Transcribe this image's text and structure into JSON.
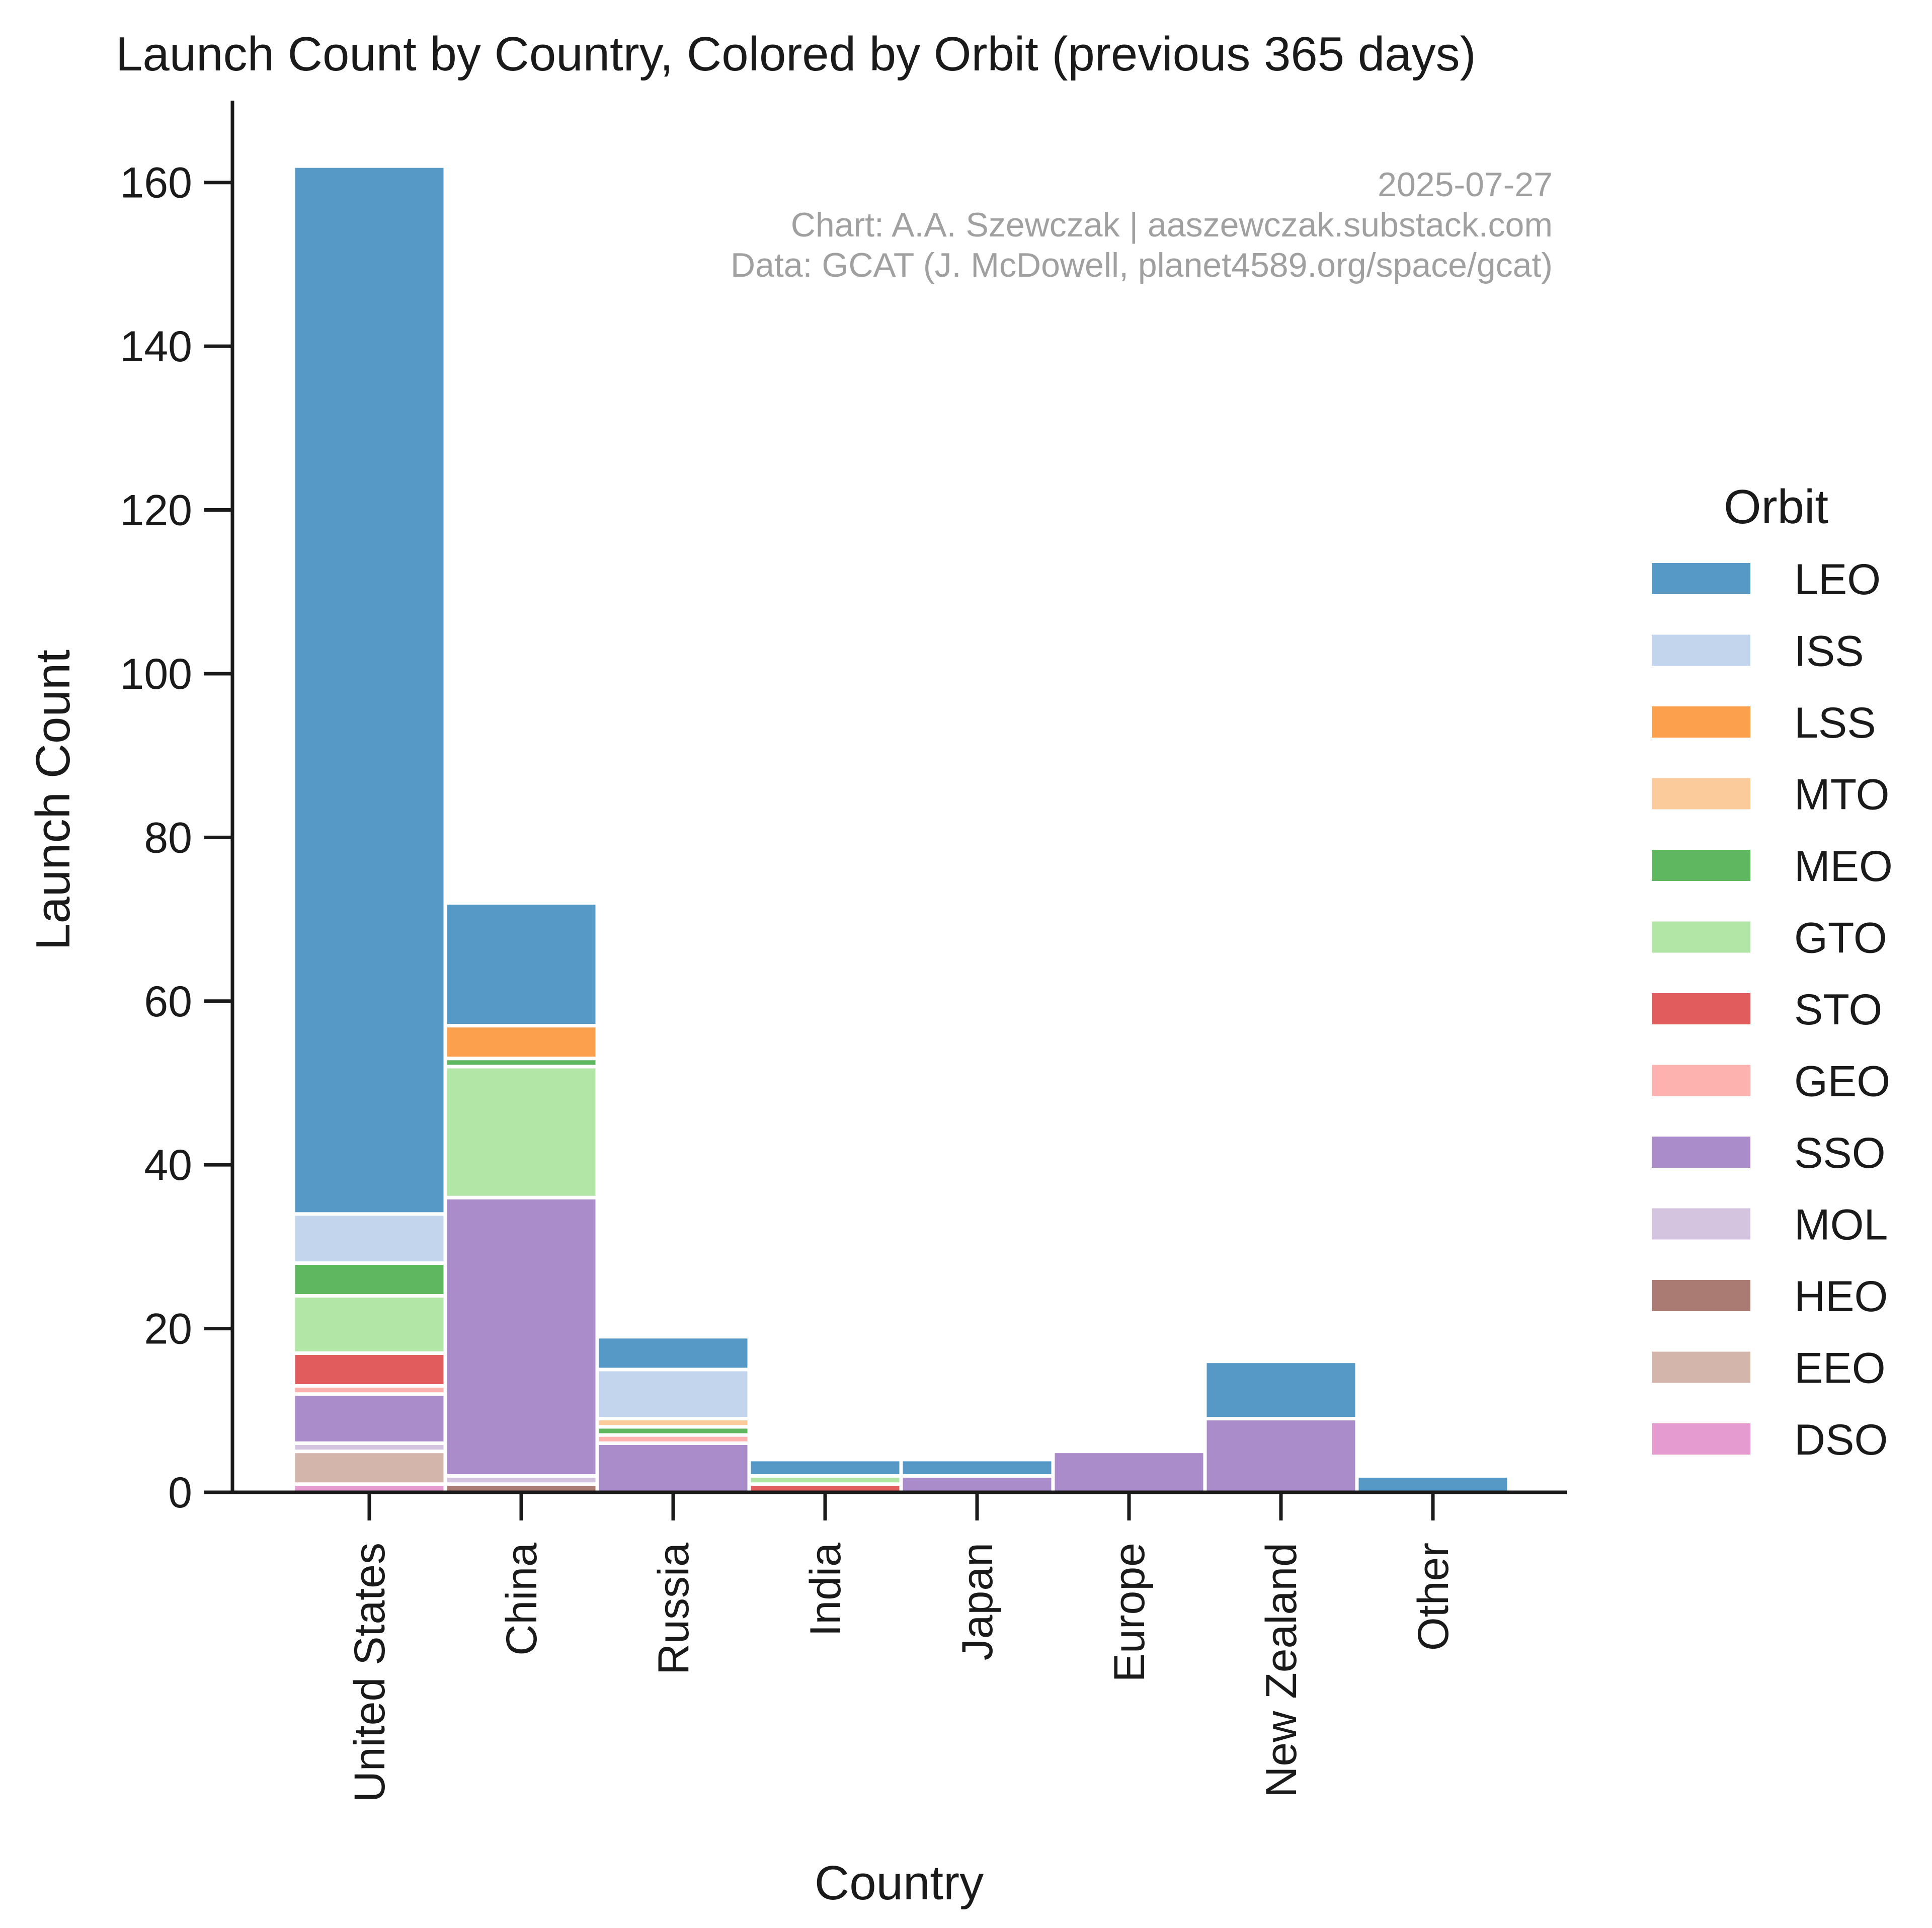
{
  "chart_data": {
    "type": "bar",
    "stacked": true,
    "title": "Launch Count by Country, Colored by Orbit (previous 365 days)",
    "xlabel": "Country",
    "ylabel": "Launch Count",
    "ylim": [
      0,
      170
    ],
    "yticks": [
      0,
      20,
      40,
      60,
      80,
      100,
      120,
      140,
      160
    ],
    "grid": false,
    "categories": [
      "United States",
      "China",
      "Russia",
      "India",
      "Japan",
      "Europe",
      "New Zealand",
      "Other"
    ],
    "credits": [
      "2025-07-27",
      "Chart: A.A. Szewczak | aaszewczak.substack.com",
      "Data: GCAT (J. McDowell, planet4589.org/space/gcat)"
    ],
    "legend": {
      "title": "Orbit",
      "position": "right"
    },
    "series": [
      {
        "name": "DSO",
        "color": "#e59ad0",
        "values": [
          1,
          0,
          0,
          0,
          0,
          0,
          0,
          0
        ]
      },
      {
        "name": "EEO",
        "color": "#d3b5ac",
        "values": [
          4,
          0,
          0,
          0,
          0,
          0,
          0,
          0
        ]
      },
      {
        "name": "HEO",
        "color": "#a97b72",
        "values": [
          0,
          1,
          0,
          0,
          0,
          0,
          0,
          0
        ]
      },
      {
        "name": "MOL",
        "color": "#d5c4df",
        "values": [
          1,
          1,
          0,
          0,
          0,
          0,
          0,
          0
        ]
      },
      {
        "name": "SSO",
        "color": "#ab8ccb",
        "values": [
          6,
          34,
          6,
          0,
          2,
          5,
          9,
          0
        ]
      },
      {
        "name": "GEO",
        "color": "#fdb2b0",
        "values": [
          1,
          0,
          1,
          0,
          0,
          0,
          0,
          0
        ]
      },
      {
        "name": "STO",
        "color": "#e05c5d",
        "values": [
          4,
          0,
          0,
          1,
          0,
          0,
          0,
          0
        ]
      },
      {
        "name": "GTO",
        "color": "#b2e6a6",
        "values": [
          7,
          16,
          0,
          1,
          0,
          0,
          0,
          0
        ]
      },
      {
        "name": "MEO",
        "color": "#5fb760",
        "values": [
          4,
          1,
          1,
          0,
          0,
          0,
          0,
          0
        ]
      },
      {
        "name": "MTO",
        "color": "#fccb9b",
        "values": [
          0,
          0,
          1,
          0,
          0,
          0,
          0,
          0
        ]
      },
      {
        "name": "LSS",
        "color": "#fda04d",
        "values": [
          0,
          4,
          0,
          0,
          0,
          0,
          0,
          0
        ]
      },
      {
        "name": "ISS",
        "color": "#c2d5ed",
        "values": [
          6,
          0,
          6,
          0,
          0,
          0,
          0,
          0
        ]
      },
      {
        "name": "LEO",
        "color": "#5799c6",
        "values": [
          128,
          15,
          4,
          2,
          2,
          0,
          7,
          2
        ]
      }
    ],
    "legend_order": [
      "LEO",
      "ISS",
      "LSS",
      "MTO",
      "MEO",
      "GTO",
      "STO",
      "GEO",
      "SSO",
      "MOL",
      "HEO",
      "EEO",
      "DSO"
    ]
  }
}
